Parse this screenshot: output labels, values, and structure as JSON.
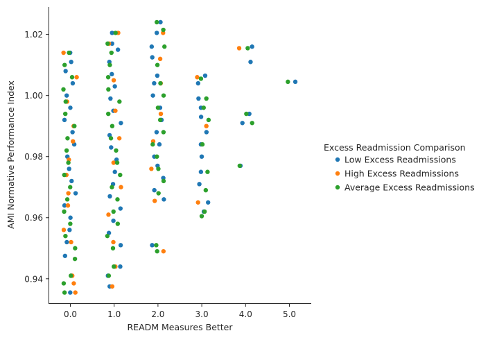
{
  "chart_data": {
    "type": "scatter",
    "subtype": "strip",
    "xlabel": "READM Measures Better",
    "ylabel": "AMI Normative Performance Index",
    "categories": [
      "0.0",
      "1.0",
      "2.0",
      "3.0",
      "4.0",
      "5.0"
    ],
    "category_values": [
      0,
      1,
      2,
      3,
      4,
      5
    ],
    "yticks": [
      0.94,
      0.96,
      0.98,
      1.0,
      1.02
    ],
    "ytick_labels": [
      "0.94",
      "0.96",
      "0.98",
      "1.00",
      "1.02"
    ],
    "ylim": [
      0.932,
      1.029
    ],
    "grid": false,
    "legend": {
      "title": "Excess Readmission Comparison",
      "placement": "right",
      "entries": [
        "Low Excess Readmissions",
        "High Excess Readmissions",
        "Average Excess Readmissions"
      ]
    },
    "series": [
      {
        "name": "Low Excess Readmissions",
        "color": "#1f77b4",
        "points": [
          [
            0,
            0.9355
          ],
          [
            0,
            0.941
          ],
          [
            0,
            0.9475
          ],
          [
            0,
            0.952
          ],
          [
            0,
            0.956
          ],
          [
            0,
            0.96
          ],
          [
            0,
            0.964
          ],
          [
            0,
            0.968
          ],
          [
            0,
            0.972
          ],
          [
            0,
            0.976
          ],
          [
            0,
            0.98
          ],
          [
            0,
            0.984
          ],
          [
            0,
            0.988
          ],
          [
            0,
            0.992
          ],
          [
            0,
            0.996
          ],
          [
            0,
            1.0
          ],
          [
            0,
            1.004
          ],
          [
            0,
            1.008
          ],
          [
            0,
            1.011
          ],
          [
            0,
            1.014
          ],
          [
            1,
            0.9375
          ],
          [
            1,
            0.941
          ],
          [
            1,
            0.944
          ],
          [
            1,
            0.951
          ],
          [
            1,
            0.955
          ],
          [
            1,
            0.959
          ],
          [
            1,
            0.963
          ],
          [
            1,
            0.967
          ],
          [
            1,
            0.971
          ],
          [
            1,
            0.975
          ],
          [
            1,
            0.979
          ],
          [
            1,
            0.983
          ],
          [
            1,
            0.987
          ],
          [
            1,
            0.991
          ],
          [
            1,
            0.995
          ],
          [
            1,
            0.999
          ],
          [
            1,
            1.003
          ],
          [
            1,
            1.007
          ],
          [
            1,
            1.011
          ],
          [
            1,
            1.015
          ],
          [
            1,
            1.017
          ],
          [
            1,
            1.0205
          ],
          [
            2,
            0.951
          ],
          [
            2,
            0.966
          ],
          [
            2,
            0.969
          ],
          [
            2,
            0.973
          ],
          [
            2,
            0.977
          ],
          [
            2,
            0.98
          ],
          [
            2,
            0.984
          ],
          [
            2,
            0.988
          ],
          [
            2,
            0.992
          ],
          [
            2,
            0.996
          ],
          [
            2,
            1.0
          ],
          [
            2,
            1.004
          ],
          [
            2,
            1.0065
          ],
          [
            2,
            1.0125
          ],
          [
            2,
            1.016
          ],
          [
            2,
            1.0205
          ],
          [
            2,
            1.024
          ],
          [
            3,
            0.962
          ],
          [
            3,
            0.965
          ],
          [
            3,
            0.971
          ],
          [
            3,
            0.975
          ],
          [
            3,
            0.98
          ],
          [
            3,
            0.984
          ],
          [
            3,
            0.988
          ],
          [
            3,
            0.993
          ],
          [
            3,
            0.996
          ],
          [
            3,
            0.999
          ],
          [
            3,
            1.004
          ],
          [
            3,
            1.0065
          ],
          [
            4,
            0.977
          ],
          [
            4,
            0.991
          ],
          [
            4,
            0.994
          ],
          [
            4,
            1.011
          ],
          [
            4,
            1.016
          ],
          [
            5,
            1.0045
          ]
        ]
      },
      {
        "name": "High Excess Readmissions",
        "color": "#ff7f0e",
        "points": [
          [
            0,
            0.9355
          ],
          [
            0,
            0.9385
          ],
          [
            0,
            0.941
          ],
          [
            0,
            0.952
          ],
          [
            0,
            0.956
          ],
          [
            0,
            0.964
          ],
          [
            0,
            0.968
          ],
          [
            0,
            0.974
          ],
          [
            0,
            0.979
          ],
          [
            0,
            0.985
          ],
          [
            0,
            0.99
          ],
          [
            0,
            0.998
          ],
          [
            0,
            1.006
          ],
          [
            0,
            1.014
          ],
          [
            1,
            0.9375
          ],
          [
            1,
            0.944
          ],
          [
            1,
            0.952
          ],
          [
            1,
            0.961
          ],
          [
            1,
            0.97
          ],
          [
            1,
            0.978
          ],
          [
            1,
            0.986
          ],
          [
            1,
            0.995
          ],
          [
            1,
            1.005
          ],
          [
            1,
            1.017
          ],
          [
            1,
            1.0205
          ],
          [
            2,
            0.949
          ],
          [
            2,
            0.9655
          ],
          [
            2,
            0.976
          ],
          [
            2,
            0.985
          ],
          [
            2,
            0.994
          ],
          [
            2,
            1.004
          ],
          [
            2,
            1.012
          ],
          [
            2,
            1.0205
          ],
          [
            3,
            0.965
          ],
          [
            3,
            0.99
          ],
          [
            3,
            1.006
          ],
          [
            4,
            1.0155
          ]
        ]
      },
      {
        "name": "Average Excess Readmissions",
        "color": "#2ca02c",
        "points": [
          [
            0,
            0.9355
          ],
          [
            0,
            0.9385
          ],
          [
            0,
            0.941
          ],
          [
            0,
            0.9465
          ],
          [
            0,
            0.95
          ],
          [
            0,
            0.954
          ],
          [
            0,
            0.958
          ],
          [
            0,
            0.962
          ],
          [
            0,
            0.966
          ],
          [
            0,
            0.97
          ],
          [
            0,
            0.974
          ],
          [
            0,
            0.978
          ],
          [
            0,
            0.982
          ],
          [
            0,
            0.986
          ],
          [
            0,
            0.99
          ],
          [
            0,
            0.994
          ],
          [
            0,
            0.998
          ],
          [
            0,
            1.002
          ],
          [
            0,
            1.006
          ],
          [
            0,
            1.01
          ],
          [
            0,
            1.014
          ],
          [
            1,
            0.941
          ],
          [
            1,
            0.944
          ],
          [
            1,
            0.95
          ],
          [
            1,
            0.954
          ],
          [
            1,
            0.958
          ],
          [
            1,
            0.962
          ],
          [
            1,
            0.966
          ],
          [
            1,
            0.97
          ],
          [
            1,
            0.974
          ],
          [
            1,
            0.978
          ],
          [
            1,
            0.982
          ],
          [
            1,
            0.986
          ],
          [
            1,
            0.99
          ],
          [
            1,
            0.994
          ],
          [
            1,
            0.998
          ],
          [
            1,
            1.002
          ],
          [
            1,
            1.006
          ],
          [
            1,
            1.01
          ],
          [
            1,
            1.014
          ],
          [
            1,
            1.017
          ],
          [
            1,
            1.0205
          ],
          [
            2,
            0.949
          ],
          [
            2,
            0.951
          ],
          [
            2,
            0.968
          ],
          [
            2,
            0.972
          ],
          [
            2,
            0.976
          ],
          [
            2,
            0.98
          ],
          [
            2,
            0.984
          ],
          [
            2,
            0.988
          ],
          [
            2,
            0.992
          ],
          [
            2,
            0.996
          ],
          [
            2,
            1.0
          ],
          [
            2,
            1.004
          ],
          [
            2,
            1.01
          ],
          [
            2,
            1.016
          ],
          [
            2,
            1.0215
          ],
          [
            2,
            1.024
          ],
          [
            3,
            0.9605
          ],
          [
            3,
            0.962
          ],
          [
            3,
            0.969
          ],
          [
            3,
            0.975
          ],
          [
            3,
            0.984
          ],
          [
            3,
            0.992
          ],
          [
            3,
            0.996
          ],
          [
            3,
            0.999
          ],
          [
            3,
            1.0055
          ],
          [
            4,
            0.977
          ],
          [
            4,
            0.991
          ],
          [
            4,
            0.994
          ],
          [
            4,
            1.0155
          ],
          [
            5,
            1.0045
          ]
        ]
      }
    ]
  }
}
